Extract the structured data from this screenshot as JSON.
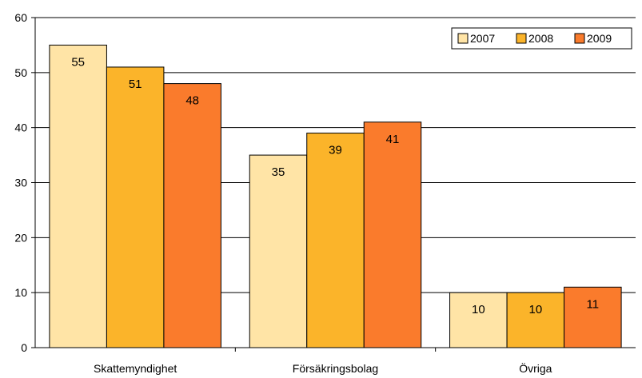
{
  "chart_data": {
    "type": "bar",
    "categories": [
      "Skattemyndighet",
      "Försäkringsbolag",
      "Övriga"
    ],
    "series": [
      {
        "name": "2007",
        "values": [
          55,
          35,
          10
        ],
        "color": "#FFE4A6"
      },
      {
        "name": "2008",
        "values": [
          51,
          39,
          10
        ],
        "color": "#FBB42A"
      },
      {
        "name": "2009",
        "values": [
          48,
          41,
          11
        ],
        "color": "#FA7B2C"
      }
    ],
    "y_ticks": [
      "0",
      "10",
      "20",
      "30",
      "40",
      "50",
      "60"
    ],
    "ylim": [
      0,
      60
    ],
    "grid": true,
    "legend": "top-right",
    "data_labels": true
  }
}
